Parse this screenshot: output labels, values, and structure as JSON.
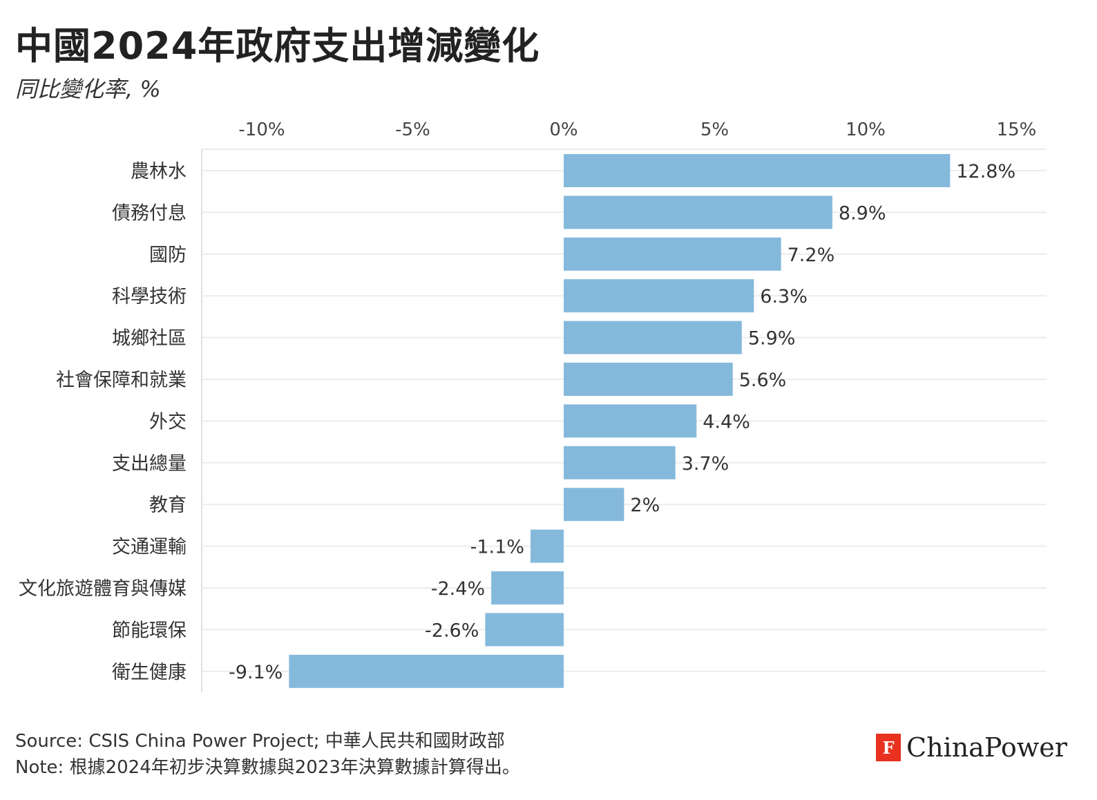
{
  "title": "中國2024年政府支出增減變化",
  "subtitle": "同比變化率, %",
  "chart_data": {
    "type": "bar",
    "orientation": "horizontal",
    "categories": [
      "農林水",
      "債務付息",
      "國防",
      "科學技術",
      "城鄉社區",
      "社會保障和就業",
      "外交",
      "支出總量",
      "教育",
      "交通運輸",
      "文化旅遊體育與傳媒",
      "節能環保",
      "衛生健康"
    ],
    "values": [
      12.8,
      8.9,
      7.2,
      6.3,
      5.9,
      5.6,
      4.4,
      3.7,
      2,
      -1.1,
      -2.4,
      -2.6,
      -9.1
    ],
    "value_labels": [
      "12.8%",
      "8.9%",
      "7.2%",
      "6.3%",
      "5.9%",
      "5.6%",
      "4.4%",
      "3.7%",
      "2%",
      "-1.1%",
      "-2.4%",
      "-2.6%",
      "-9.1%"
    ],
    "x_ticks": [
      -10,
      -5,
      0,
      5,
      10,
      15
    ],
    "x_tick_labels": [
      "-10%",
      "-5%",
      "0%",
      "5%",
      "10%",
      "15%"
    ],
    "xlim": [
      -12,
      16
    ],
    "grid": true,
    "axis_position": "top",
    "bar_color": "#85b9dc"
  },
  "footer": {
    "source": "Source: CSIS China Power Project; 中華人民共和國財政部",
    "note": "Note: 根據2024年初步決算數據與2023年決算數據計算得出。"
  },
  "logo": {
    "mark": "F",
    "text": "ChinaPower",
    "mark_color": "#e8321f"
  }
}
